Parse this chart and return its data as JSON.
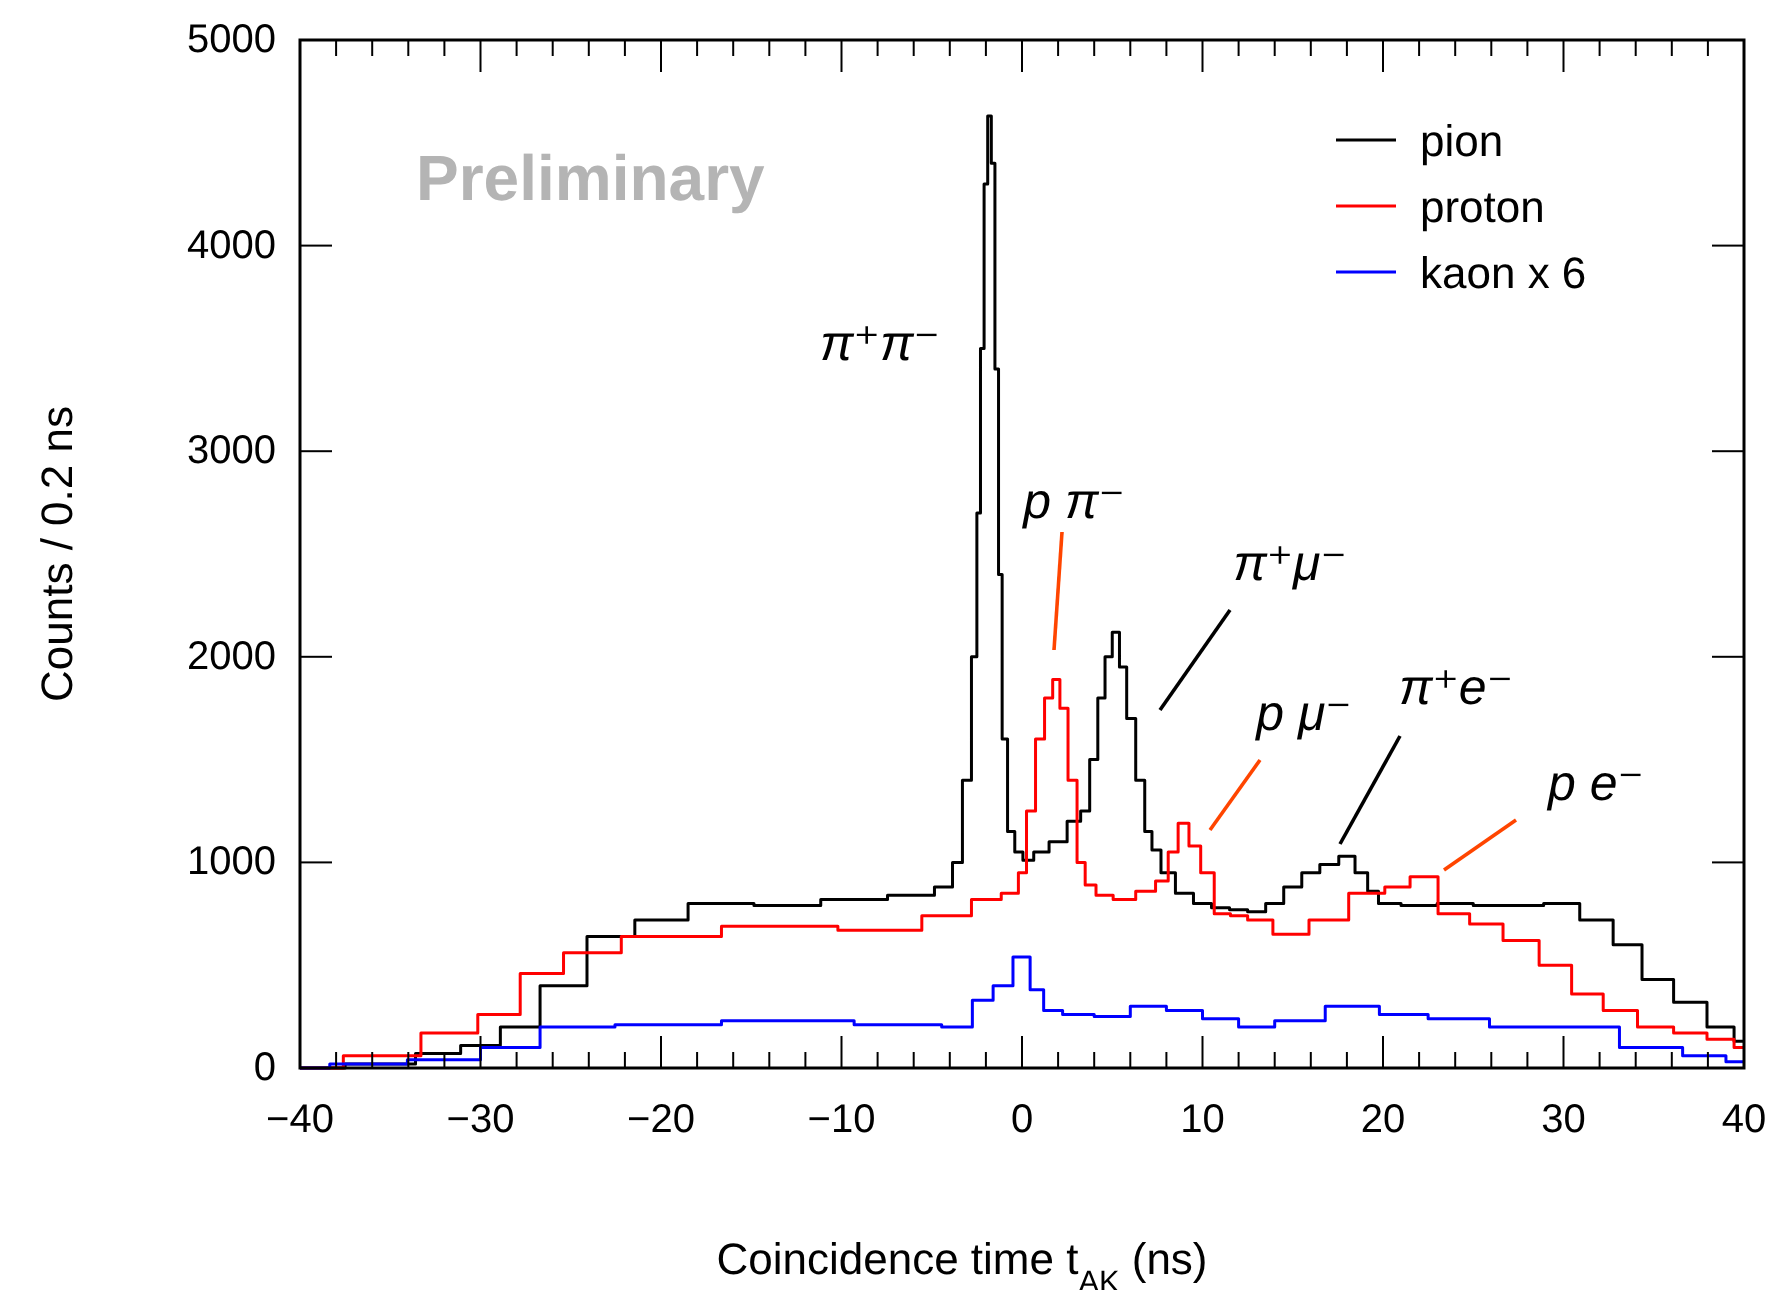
{
  "chart_data": {
    "type": "step",
    "xlabel": "Coincidence time t$_{AK}$ (ns)",
    "ylabel": "Counts / 0.2 ns",
    "xlim": [
      -40,
      40
    ],
    "ylim": [
      0,
      5000
    ],
    "xticks": [
      {
        "value": -40,
        "label": "−40"
      },
      {
        "value": -30,
        "label": "−30"
      },
      {
        "value": -20,
        "label": "−20"
      },
      {
        "value": -10,
        "label": "−10"
      },
      0,
      10,
      20,
      30,
      40
    ],
    "yticks": [
      0,
      1000,
      2000,
      3000,
      4000,
      5000
    ],
    "grid": false,
    "legend": "top right",
    "series": [
      {
        "name": "pion",
        "color": "#000000",
        "x": [
          -40,
          -35,
          -32.2,
          -30,
          -27.8,
          -25.6,
          -22.6,
          -20.3,
          -16.7,
          -13,
          -9.3,
          -5.6,
          -4.1,
          -3.6,
          -3,
          -2.6,
          -2.4,
          -2.2,
          -2,
          -1.8,
          -1.6,
          -1.4,
          -1.2,
          -1,
          -0.6,
          -0.2,
          0.3,
          1,
          2,
          3,
          3.5,
          4,
          4.4,
          4.8,
          5.2,
          5.6,
          6,
          6.6,
          7,
          7.4,
          8,
          9,
          10,
          11,
          12,
          13,
          14,
          15,
          16,
          17,
          18.1,
          18.8,
          19.5,
          20,
          22,
          24,
          26,
          28,
          29.8,
          32,
          33.5,
          35.2,
          37,
          38.9,
          40
        ],
        "values": [
          0,
          20,
          70,
          110,
          200,
          400,
          640,
          720,
          800,
          790,
          820,
          840,
          880,
          1000,
          1400,
          2000,
          2700,
          3500,
          4300,
          4630,
          4400,
          3400,
          2400,
          1600,
          1150,
          1050,
          1010,
          1050,
          1100,
          1200,
          1250,
          1500,
          1800,
          2000,
          2120,
          1950,
          1700,
          1400,
          1150,
          1060,
          950,
          850,
          800,
          780,
          770,
          760,
          800,
          880,
          950,
          990,
          1030,
          950,
          860,
          800,
          790,
          800,
          790,
          790,
          800,
          720,
          600,
          430,
          320,
          200,
          130
        ]
      },
      {
        "name": "proton",
        "color": "#ff0000",
        "x": [
          -40,
          -35.2,
          -31.4,
          -28.9,
          -26.7,
          -24.1,
          -20.3,
          -13,
          -7.4,
          -3.7,
          -1.9,
          -0.4,
          0,
          0.5,
          1,
          1.5,
          1.9,
          2.3,
          2.8,
          3.3,
          3.7,
          4.5,
          5.6,
          7,
          7.8,
          8.4,
          8.9,
          9.6,
          10.2,
          11.1,
          12,
          13,
          14.8,
          17,
          19.2,
          21,
          22,
          24.1,
          25.5,
          27.8,
          29.5,
          31.4,
          33,
          35.2,
          37,
          38.9,
          40
        ],
        "values": [
          0,
          60,
          170,
          260,
          460,
          560,
          640,
          690,
          670,
          740,
          820,
          850,
          950,
          1250,
          1600,
          1800,
          1890,
          1750,
          1400,
          1000,
          890,
          840,
          820,
          860,
          910,
          1050,
          1190,
          1080,
          950,
          750,
          740,
          720,
          650,
          720,
          850,
          880,
          930,
          750,
          700,
          620,
          500,
          360,
          280,
          200,
          170,
          140,
          100
        ]
      },
      {
        "name": "kaon x 6",
        "color": "#0000ff",
        "x": [
          -40,
          -36.7,
          -31.4,
          -28.6,
          -24.8,
          -20.3,
          -13,
          -5.6,
          -3.3,
          -2.2,
          -1,
          0,
          0.9,
          1.5,
          3,
          5,
          7,
          9,
          11,
          13,
          15,
          18.6,
          21,
          24,
          27.8,
          31,
          35.2,
          38,
          40
        ],
        "values": [
          0,
          20,
          40,
          100,
          200,
          210,
          230,
          210,
          200,
          330,
          400,
          540,
          380,
          280,
          260,
          250,
          300,
          280,
          240,
          200,
          230,
          300,
          260,
          240,
          200,
          200,
          100,
          60,
          30
        ]
      }
    ],
    "annotations": [
      "π⁺π⁻",
      "p π⁻",
      "π⁺μ⁻",
      "p μ⁻",
      "π⁺e⁻",
      "p e⁻",
      "Preliminary"
    ]
  }
}
